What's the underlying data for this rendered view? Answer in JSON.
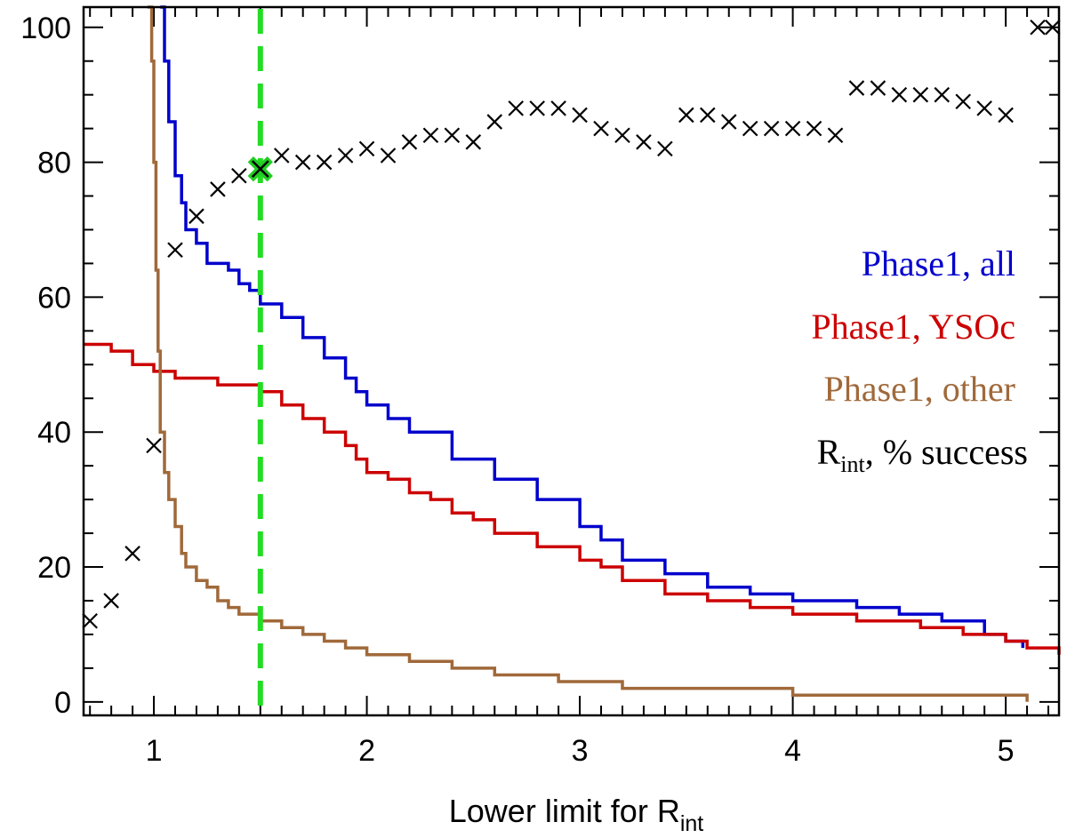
{
  "chart_data": {
    "type": "line",
    "title": "",
    "xlabel": "Lower limit for R",
    "xlabel_sub": "int",
    "ylabel": "",
    "xlim": [
      0.67,
      5.25
    ],
    "ylim": [
      -2,
      103
    ],
    "x_ticks": [
      1,
      2,
      3,
      4,
      5
    ],
    "y_ticks": [
      0,
      20,
      40,
      60,
      80,
      100
    ],
    "x_tick_labels": [
      "1",
      "2",
      "3",
      "4",
      "5"
    ],
    "y_tick_labels": [
      "0",
      "20",
      "40",
      "60",
      "80",
      "100"
    ],
    "grid": false,
    "legend_position": "right",
    "threshold_line": {
      "x": 1.5,
      "color": "#22dd22",
      "style": "dashed"
    },
    "series": [
      {
        "name": "Phase1, all",
        "color": "#0000cc",
        "kind": "step",
        "points": [
          [
            1.03,
            103
          ],
          [
            1.05,
            95
          ],
          [
            1.07,
            86
          ],
          [
            1.1,
            78
          ],
          [
            1.13,
            74
          ],
          [
            1.15,
            70
          ],
          [
            1.2,
            68
          ],
          [
            1.25,
            65
          ],
          [
            1.35,
            64
          ],
          [
            1.4,
            62
          ],
          [
            1.45,
            61
          ],
          [
            1.5,
            59
          ],
          [
            1.6,
            57
          ],
          [
            1.7,
            54
          ],
          [
            1.8,
            51
          ],
          [
            1.9,
            48
          ],
          [
            1.95,
            46
          ],
          [
            2.0,
            44
          ],
          [
            2.1,
            42
          ],
          [
            2.2,
            40
          ],
          [
            2.4,
            36
          ],
          [
            2.6,
            33
          ],
          [
            2.8,
            30
          ],
          [
            3.0,
            26
          ],
          [
            3.1,
            24
          ],
          [
            3.2,
            21
          ],
          [
            3.4,
            19
          ],
          [
            3.6,
            17
          ],
          [
            3.8,
            16
          ],
          [
            4.0,
            15
          ],
          [
            4.3,
            14
          ],
          [
            4.5,
            13
          ],
          [
            4.7,
            12
          ],
          [
            4.9,
            10
          ],
          [
            5.0,
            9
          ],
          [
            5.08,
            8
          ]
        ]
      },
      {
        "name": "Phase1, YSOc",
        "color": "#cc0000",
        "kind": "step",
        "points": [
          [
            0.67,
            53
          ],
          [
            0.8,
            52
          ],
          [
            0.9,
            50
          ],
          [
            1.0,
            49
          ],
          [
            1.1,
            48
          ],
          [
            1.3,
            47
          ],
          [
            1.5,
            46
          ],
          [
            1.6,
            44
          ],
          [
            1.7,
            42
          ],
          [
            1.8,
            40
          ],
          [
            1.9,
            38
          ],
          [
            1.95,
            36
          ],
          [
            2.0,
            34
          ],
          [
            2.1,
            33
          ],
          [
            2.2,
            31
          ],
          [
            2.3,
            30
          ],
          [
            2.4,
            28
          ],
          [
            2.5,
            27
          ],
          [
            2.6,
            25
          ],
          [
            2.8,
            23
          ],
          [
            3.0,
            21
          ],
          [
            3.1,
            20
          ],
          [
            3.2,
            18
          ],
          [
            3.4,
            16
          ],
          [
            3.6,
            15
          ],
          [
            3.8,
            14
          ],
          [
            4.0,
            13
          ],
          [
            4.3,
            12
          ],
          [
            4.6,
            11
          ],
          [
            4.8,
            10
          ],
          [
            5.0,
            9
          ],
          [
            5.1,
            8
          ],
          [
            5.25,
            7
          ]
        ]
      },
      {
        "name": "Phase1, other",
        "color": "#a0693a",
        "kind": "step",
        "points": [
          [
            0.97,
            103
          ],
          [
            0.99,
            95
          ],
          [
            1.0,
            80
          ],
          [
            1.01,
            64
          ],
          [
            1.02,
            52
          ],
          [
            1.03,
            40
          ],
          [
            1.05,
            34
          ],
          [
            1.07,
            30
          ],
          [
            1.1,
            26
          ],
          [
            1.13,
            22
          ],
          [
            1.15,
            20
          ],
          [
            1.2,
            18
          ],
          [
            1.25,
            17
          ],
          [
            1.3,
            15
          ],
          [
            1.35,
            14
          ],
          [
            1.4,
            13
          ],
          [
            1.5,
            12
          ],
          [
            1.6,
            11
          ],
          [
            1.7,
            10
          ],
          [
            1.8,
            9
          ],
          [
            1.9,
            8
          ],
          [
            2.0,
            7
          ],
          [
            2.2,
            6
          ],
          [
            2.4,
            5
          ],
          [
            2.6,
            4
          ],
          [
            2.9,
            3
          ],
          [
            3.2,
            2
          ],
          [
            3.5,
            2
          ],
          [
            4.0,
            1
          ],
          [
            4.5,
            1
          ],
          [
            5.0,
            1
          ],
          [
            5.1,
            0
          ]
        ]
      },
      {
        "name": "R_int, % success",
        "color": "#000000",
        "kind": "scatter",
        "marker": "x",
        "points": [
          [
            0.7,
            12
          ],
          [
            0.8,
            15
          ],
          [
            0.9,
            22
          ],
          [
            1.0,
            38
          ],
          [
            1.1,
            67
          ],
          [
            1.2,
            72
          ],
          [
            1.3,
            76
          ],
          [
            1.4,
            78
          ],
          [
            1.5,
            79
          ],
          [
            1.6,
            81
          ],
          [
            1.7,
            80
          ],
          [
            1.8,
            80
          ],
          [
            1.9,
            81
          ],
          [
            2.0,
            82
          ],
          [
            2.1,
            81
          ],
          [
            2.2,
            83
          ],
          [
            2.3,
            84
          ],
          [
            2.4,
            84
          ],
          [
            2.5,
            83
          ],
          [
            2.6,
            86
          ],
          [
            2.7,
            88
          ],
          [
            2.8,
            88
          ],
          [
            2.9,
            88
          ],
          [
            3.0,
            87
          ],
          [
            3.1,
            85
          ],
          [
            3.2,
            84
          ],
          [
            3.3,
            83
          ],
          [
            3.4,
            82
          ],
          [
            3.5,
            87
          ],
          [
            3.6,
            87
          ],
          [
            3.7,
            86
          ],
          [
            3.8,
            85
          ],
          [
            3.9,
            85
          ],
          [
            4.0,
            85
          ],
          [
            4.1,
            85
          ],
          [
            4.2,
            84
          ],
          [
            4.3,
            91
          ],
          [
            4.4,
            91
          ],
          [
            4.5,
            90
          ],
          [
            4.6,
            90
          ],
          [
            4.7,
            90
          ],
          [
            4.8,
            89
          ],
          [
            4.9,
            88
          ],
          [
            5.0,
            87
          ],
          [
            5.15,
            100
          ],
          [
            5.22,
            100
          ]
        ]
      }
    ],
    "highlight_point": {
      "x": 1.5,
      "y": 79,
      "color": "#22cc22"
    },
    "legend": [
      {
        "label": "Phase1, all",
        "color": "#0000cc"
      },
      {
        "label": "Phase1, YSOc",
        "color": "#cc0000"
      },
      {
        "label": "Phase1, other",
        "color": "#a0693a"
      },
      {
        "label_main": "R",
        "label_sub": "int",
        "label_rest": ", % success",
        "color": "#000000"
      }
    ]
  }
}
